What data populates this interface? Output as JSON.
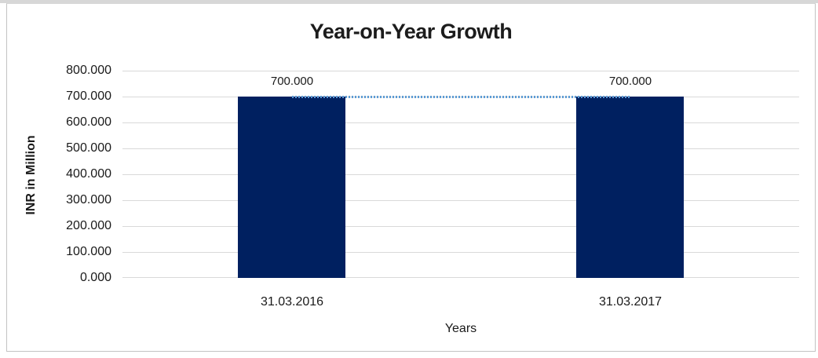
{
  "window": {
    "background_color": "#FFFFFF",
    "top_strip_color": "#D7D7D7",
    "frame_border_color": "#C3C3C3"
  },
  "chart_data": {
    "type": "bar",
    "title": "Year-on-Year Growth",
    "xlabel": "Years",
    "ylabel": "INR in Million",
    "categories": [
      "31.03.2016",
      "31.03.2017"
    ],
    "values": [
      700,
      700
    ],
    "value_labels": [
      "700.000",
      "700.000"
    ],
    "ylim": [
      0,
      800
    ],
    "yticks": [
      {
        "value": 800,
        "label": "800.000"
      },
      {
        "value": 700,
        "label": "700.000"
      },
      {
        "value": 600,
        "label": "600.000"
      },
      {
        "value": 500,
        "label": "500.000"
      },
      {
        "value": 400,
        "label": "400.000"
      },
      {
        "value": 300,
        "label": "300.000"
      },
      {
        "value": 200,
        "label": "200.000"
      },
      {
        "value": 100,
        "label": "100.000"
      },
      {
        "value": 0,
        "label": "0.000"
      }
    ],
    "grid": "horizontal",
    "gridline_color": "#D9D9D9",
    "legend": "none",
    "bar_color": "#002060",
    "trendline": {
      "style": "dotted",
      "color": "#5B9BD5",
      "values": [
        700,
        700
      ]
    }
  }
}
